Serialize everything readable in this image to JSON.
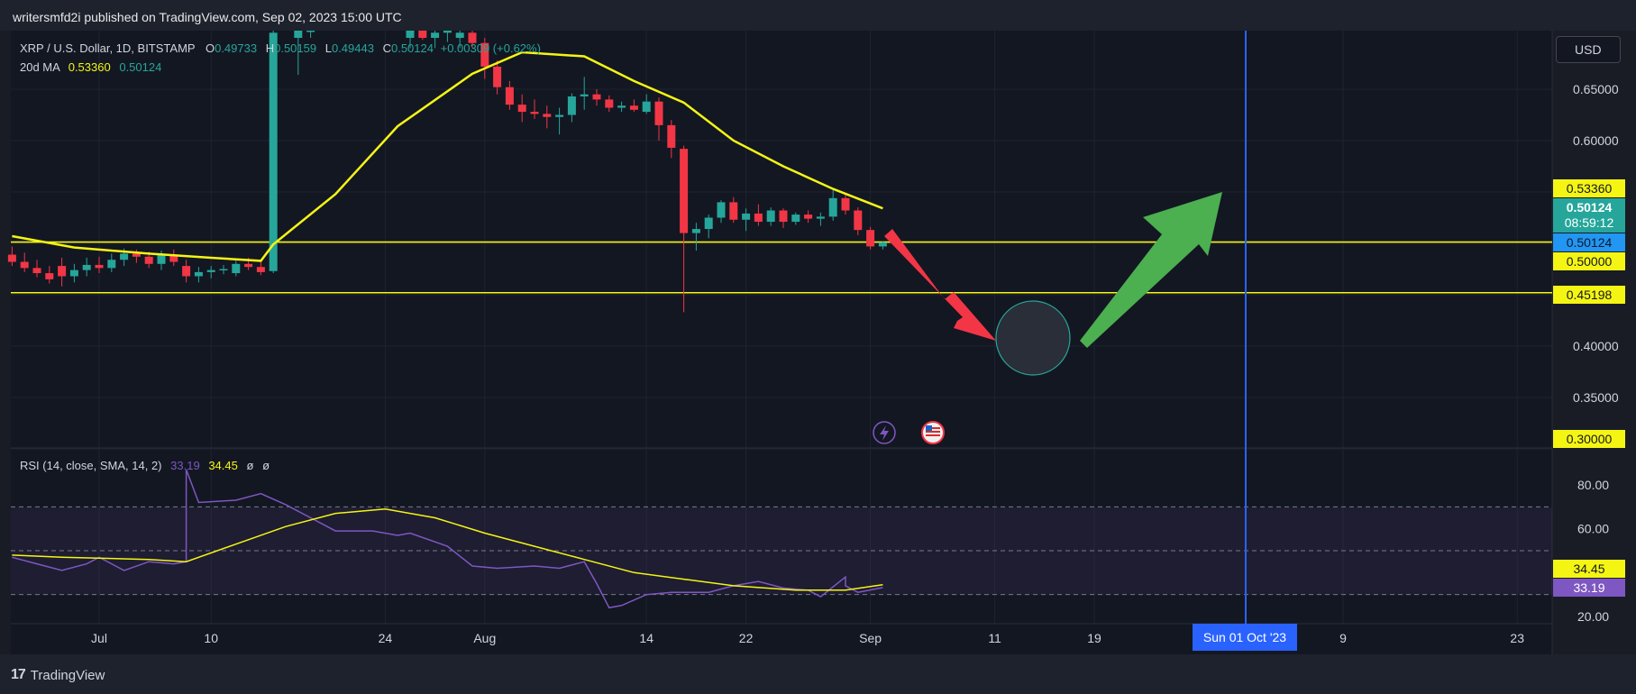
{
  "header": {
    "publisher": "writersmfd2i published on TradingView.com, Sep 02, 2023 15:00 UTC"
  },
  "legend": {
    "symbol": "XRP / U.S. Dollar, 1D, BITSTAMP",
    "o_label": "O",
    "o_value": "0.49733",
    "h_label": "H",
    "h_value": "0.50159",
    "l_label": "L",
    "l_value": "0.49443",
    "c_label": "C",
    "c_value": "0.50124",
    "change": "+0.00309 (+0.62%)",
    "ma_label": "20d MA",
    "ma_value_1": "0.53360",
    "ma_value_2": "0.50124"
  },
  "rsi_legend": {
    "label": "RSI (14, close, SMA, 14, 2)",
    "rsi_value": "33.19",
    "sma_value": "34.45",
    "extra_1": "ø",
    "extra_2": "ø"
  },
  "currency_button": "USD",
  "price_axis": {
    "ticks": [
      "0.65000",
      "0.60000",
      "0.40000",
      "0.35000"
    ],
    "badges": {
      "ma": "0.53360",
      "last": "0.50124",
      "countdown": "08:59:12",
      "support_1": "0.50124",
      "support_2": "0.50000",
      "support_3": "0.45198",
      "bottom": "0.30000"
    }
  },
  "rsi_axis": {
    "ticks": [
      "80.00",
      "60.00",
      "20.00"
    ],
    "badges": {
      "sma": "34.45",
      "rsi": "33.19"
    }
  },
  "time_axis": {
    "labels": [
      "Jul",
      "10",
      "24",
      "Aug",
      "14",
      "22",
      "Sep",
      "11",
      "19",
      "9",
      "23"
    ],
    "highlight": "Sun 01 Oct '23"
  },
  "branding": "TradingView",
  "colors": {
    "background": "#131722",
    "up": "#26a69a",
    "down": "#f23645",
    "ma": "#f5f514",
    "rsi": "#7e57c2",
    "level_line": "#f5f514",
    "vertical_line": "#2962ff",
    "arrow_down": "#f23645",
    "arrow_up": "#4caf50"
  },
  "chart_data": [
    {
      "type": "candlestick",
      "title": "XRP / U.S. Dollar, 1D, BITSTAMP",
      "x_axis": "date (2023)",
      "ylim": [
        0.3,
        0.67
      ],
      "candles": [
        {
          "date": "2023-06-24",
          "o": 0.489,
          "h": 0.497,
          "l": 0.478,
          "c": 0.482
        },
        {
          "date": "2023-06-25",
          "o": 0.482,
          "h": 0.491,
          "l": 0.472,
          "c": 0.476
        },
        {
          "date": "2023-06-26",
          "o": 0.476,
          "h": 0.484,
          "l": 0.467,
          "c": 0.471
        },
        {
          "date": "2023-06-27",
          "o": 0.471,
          "h": 0.478,
          "l": 0.461,
          "c": 0.465
        },
        {
          "date": "2023-06-28",
          "o": 0.478,
          "h": 0.486,
          "l": 0.458,
          "c": 0.468
        },
        {
          "date": "2023-06-29",
          "o": 0.468,
          "h": 0.48,
          "l": 0.462,
          "c": 0.474
        },
        {
          "date": "2023-06-30",
          "o": 0.474,
          "h": 0.486,
          "l": 0.468,
          "c": 0.479
        },
        {
          "date": "2023-07-01",
          "o": 0.479,
          "h": 0.487,
          "l": 0.471,
          "c": 0.476
        },
        {
          "date": "2023-07-02",
          "o": 0.476,
          "h": 0.49,
          "l": 0.472,
          "c": 0.484
        },
        {
          "date": "2023-07-03",
          "o": 0.484,
          "h": 0.495,
          "l": 0.478,
          "c": 0.49
        },
        {
          "date": "2023-07-04",
          "o": 0.49,
          "h": 0.494,
          "l": 0.481,
          "c": 0.487
        },
        {
          "date": "2023-07-05",
          "o": 0.487,
          "h": 0.492,
          "l": 0.476,
          "c": 0.48
        },
        {
          "date": "2023-07-06",
          "o": 0.48,
          "h": 0.493,
          "l": 0.474,
          "c": 0.489
        },
        {
          "date": "2023-07-07",
          "o": 0.489,
          "h": 0.494,
          "l": 0.478,
          "c": 0.482
        },
        {
          "date": "2023-07-08",
          "o": 0.478,
          "h": 0.484,
          "l": 0.462,
          "c": 0.468
        },
        {
          "date": "2023-07-09",
          "o": 0.468,
          "h": 0.477,
          "l": 0.462,
          "c": 0.472
        },
        {
          "date": "2023-07-10",
          "o": 0.472,
          "h": 0.478,
          "l": 0.466,
          "c": 0.474
        },
        {
          "date": "2023-07-11",
          "o": 0.474,
          "h": 0.479,
          "l": 0.47,
          "c": 0.475
        },
        {
          "date": "2023-07-12",
          "o": 0.471,
          "h": 0.483,
          "l": 0.468,
          "c": 0.48
        },
        {
          "date": "2023-07-13",
          "o": 0.48,
          "h": 0.486,
          "l": 0.474,
          "c": 0.477
        },
        {
          "date": "2023-07-14",
          "o": 0.477,
          "h": 0.483,
          "l": 0.469,
          "c": 0.472
        },
        {
          "date": "2023-07-15",
          "o": 0.473,
          "h": 0.827,
          "l": 0.471,
          "c": 0.705
        }
      ],
      "ma20": {
        "name": "20d MA",
        "points": [
          [
            "2023-06-24",
            0.507
          ],
          [
            "2023-06-29",
            0.496
          ],
          [
            "2023-07-05",
            0.49
          ],
          [
            "2023-07-10",
            0.486
          ],
          [
            "2023-07-14",
            0.483
          ],
          [
            "2023-07-15",
            0.499
          ],
          [
            "2023-07-20",
            0.548
          ],
          [
            "2023-07-25",
            0.614
          ],
          [
            "2023-07-31",
            0.665
          ],
          [
            "2023-08-04",
            0.686
          ],
          [
            "2023-08-09",
            0.682
          ],
          [
            "2023-08-13",
            0.658
          ],
          [
            "2023-08-17",
            0.637
          ],
          [
            "2023-08-21",
            0.6
          ],
          [
            "2023-08-25",
            0.575
          ],
          [
            "2023-08-29",
            0.553
          ],
          [
            "2023-09-02",
            0.534
          ]
        ]
      },
      "levels": [
        0.50124,
        0.45198
      ],
      "last_price": 0.50124,
      "annotations": [
        "down arrow to circle near 0.41 (mid-Sep)",
        "up arrow toward 0.55 (end-Sep)"
      ],
      "vertical_marker": "2023-10-01"
    },
    {
      "type": "line",
      "title": "RSI (14, close, SMA, 14, 2)",
      "ylim": [
        18,
        88
      ],
      "bands": [
        30,
        50,
        70
      ],
      "series": [
        {
          "name": "RSI",
          "points": [
            [
              "2023-06-24",
              47
            ],
            [
              "2023-06-27",
              44
            ],
            [
              "2023-06-30",
              41
            ],
            [
              "2023-07-03",
              44
            ],
            [
              "2023-07-05",
              47
            ],
            [
              "2023-07-07",
              41
            ],
            [
              "2023-07-10",
              45
            ],
            [
              "2023-07-13",
              44
            ],
            [
              "2023-07-14",
              45
            ],
            [
              "2023-07-15",
              87
            ],
            [
              "2023-07-16",
              72
            ],
            [
              "2023-07-20",
              73
            ],
            [
              "2023-07-23",
              76
            ],
            [
              "2023-07-26",
              71
            ],
            [
              "2023-07-29",
              65
            ],
            [
              "2023-08-01",
              59
            ],
            [
              "2023-08-05",
              59
            ],
            [
              "2023-08-08",
              57
            ],
            [
              "2023-08-10",
              58
            ],
            [
              "2023-08-13",
              52
            ],
            [
              "2023-08-16",
              43
            ],
            [
              "2023-08-19",
              42
            ],
            [
              "2023-08-23",
              43
            ],
            [
              "2023-08-26",
              42
            ],
            [
              "2023-08-29",
              45
            ],
            [
              "2023-08-31",
              35
            ],
            [
              "2023-09-01",
              24
            ],
            [
              "2023-09-03",
              25
            ],
            [
              "2023-09-06",
              30
            ],
            [
              "2023-09-09",
              31
            ],
            [
              "2023-09-12",
              31
            ],
            [
              "2023-09-15",
              34
            ],
            [
              "2023-09-18",
              36
            ],
            [
              "2023-09-21",
              33
            ],
            [
              "2023-09-24",
              32
            ],
            [
              "2023-09-26",
              29
            ],
            [
              "2023-09-28",
              38
            ],
            [
              "2023-09-29",
              34
            ],
            [
              "2023-09-30",
              31
            ],
            [
              "2023-10-02",
              33.19
            ]
          ]
        },
        {
          "name": "SMA",
          "points": [
            [
              "2023-06-24",
              48
            ],
            [
              "2023-07-01",
              47
            ],
            [
              "2023-07-10",
              46
            ],
            [
              "2023-07-14",
              45
            ],
            [
              "2023-07-20",
              53
            ],
            [
              "2023-07-26",
              61
            ],
            [
              "2023-08-01",
              67
            ],
            [
              "2023-08-06",
              69
            ],
            [
              "2023-08-12",
              65
            ],
            [
              "2023-08-18",
              58
            ],
            [
              "2023-08-24",
              52
            ],
            [
              "2023-08-30",
              46
            ],
            [
              "2023-09-04",
              40
            ],
            [
              "2023-09-10",
              37
            ],
            [
              "2023-09-16",
              34
            ],
            [
              "2023-09-22",
              32
            ],
            [
              "2023-09-28",
              32
            ],
            [
              "2023-10-02",
              34.45
            ]
          ]
        }
      ]
    }
  ]
}
